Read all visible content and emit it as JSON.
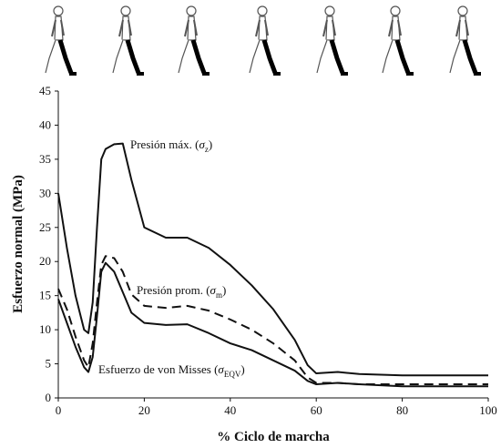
{
  "chart_data": {
    "type": "line",
    "x_label": "% Ciclo de marcha",
    "y_label": "Esfuerzo normal (MPa)",
    "x": [
      0,
      2,
      4,
      6,
      7,
      8,
      9,
      10,
      11,
      13,
      15,
      17,
      20,
      25,
      30,
      35,
      40,
      45,
      50,
      55,
      58,
      60,
      65,
      70,
      80,
      100
    ],
    "series": [
      {
        "color": "#111111",
        "line_style": "solid",
        "values": [
          30,
          22,
          15,
          10,
          9.5,
          14,
          25,
          35,
          36.5,
          37.2,
          37.3,
          32,
          25,
          23.5,
          23.5,
          22,
          19.5,
          16.5,
          13,
          8.5,
          4.8,
          3.6,
          3.8,
          3.5,
          3.3,
          3.3
        ]
      },
      {
        "color": "#111111",
        "line_style": "dashed",
        "values": [
          16,
          13,
          9,
          5.5,
          4.5,
          8,
          14,
          19.5,
          20.8,
          20.5,
          18.5,
          15.2,
          13.5,
          13.2,
          13.5,
          12.8,
          11.5,
          10,
          8,
          5.5,
          3,
          2.2,
          2.2,
          2,
          2,
          2
        ]
      },
      {
        "color": "#111111",
        "line_style": "solid",
        "values": [
          14.5,
          11,
          7.5,
          4.5,
          3.8,
          6,
          12,
          18.5,
          19.8,
          18.5,
          15.5,
          12.5,
          11,
          10.7,
          10.8,
          9.5,
          8,
          7,
          5.5,
          4,
          2.5,
          2,
          2.2,
          2,
          1.7,
          1.7
        ]
      }
    ],
    "annotations": [
      {
        "text": "Presión máx. (",
        "symbol": "σ",
        "subscript": "z",
        "close": ")"
      },
      {
        "text": "Presión prom. (",
        "symbol": "σ",
        "subscript": "m",
        "close": ")"
      },
      {
        "text": "Esfuerzo de von Misses (",
        "symbol": "σ",
        "subscript": "EQV",
        "close": ")"
      }
    ],
    "xlim": [
      0,
      100
    ],
    "ylim": [
      0,
      45
    ],
    "xticks": [
      0,
      20,
      40,
      60,
      80,
      100
    ],
    "yticks": [
      0,
      5,
      10,
      15,
      20,
      25,
      30,
      35,
      40,
      45
    ],
    "grid": false
  }
}
